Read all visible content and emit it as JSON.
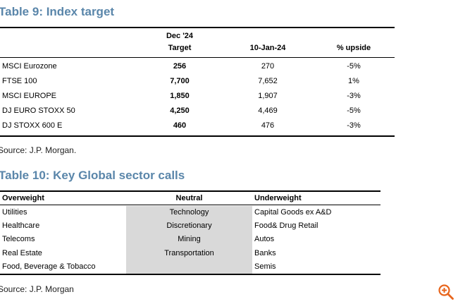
{
  "table9": {
    "title": "Table 9: Index target",
    "headers": {
      "target_line1": "Dec '24",
      "target_line2": "Target",
      "date": "10-Jan-24",
      "upside": "% upside"
    },
    "rows": [
      {
        "name": "MSCI Eurozone",
        "target": "256",
        "value": "270",
        "upside": "-5%"
      },
      {
        "name": "FTSE 100",
        "target": "7,700",
        "value": "7,652",
        "upside": "1%"
      },
      {
        "name": "MSCI EUROPE",
        "target": "1,850",
        "value": "1,907",
        "upside": "-3%"
      },
      {
        "name": "DJ EURO STOXX 50",
        "target": "4,250",
        "value": "4,469",
        "upside": "-5%"
      },
      {
        "name": "DJ STOXX 600 E",
        "target": "460",
        "value": "476",
        "upside": "-3%"
      }
    ],
    "source": "Source: J.P. Morgan."
  },
  "table10": {
    "title": "Table 10: Key Global sector calls",
    "headers": {
      "overweight": "Overweight",
      "neutral": "Neutral",
      "underweight": "Underweight"
    },
    "rows": [
      {
        "overweight": "Utilities",
        "neutral": "Technology",
        "underweight": "Capital Goods ex A&D"
      },
      {
        "overweight": "Healthcare",
        "neutral": "Discretionary",
        "underweight": "Food& Drug Retail"
      },
      {
        "overweight": "Telecoms",
        "neutral": "Mining",
        "underweight": "Autos"
      },
      {
        "overweight": "Real Estate",
        "neutral": "Transportation",
        "underweight": "Banks"
      },
      {
        "overweight": "Food, Beverage & Tobacco",
        "neutral": "",
        "underweight": "Semis"
      }
    ],
    "neutral_shade_color": "#d9d9d9",
    "source": "Source: J.P. Morgan"
  },
  "colors": {
    "title": "#5a86aa",
    "zoom_icon": "#e8651c"
  },
  "icons": {
    "zoom": "zoom-in-icon"
  }
}
